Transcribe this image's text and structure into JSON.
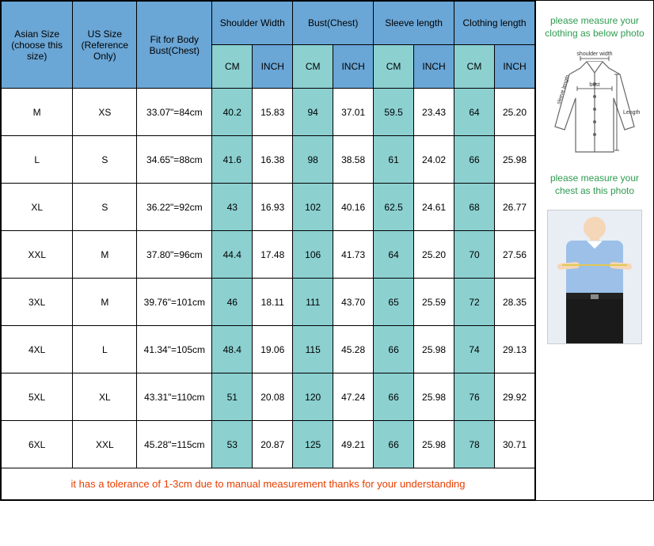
{
  "headers": {
    "asian_size": "Asian Size (choose this size)",
    "us_size": "US Size (Reference Only)",
    "fit_body": "Fit for Body Bust(Chest)",
    "shoulder": "Shoulder Width",
    "bust": "Bust(Chest)",
    "sleeve": "Sleeve length",
    "clothing": "Clothing length",
    "cm": "CM",
    "inch": "INCH"
  },
  "rows": [
    {
      "asian": "M",
      "us": "XS",
      "fit": "33.07\"=84cm",
      "sh_cm": "40.2",
      "sh_in": "15.83",
      "bu_cm": "94",
      "bu_in": "37.01",
      "sl_cm": "59.5",
      "sl_in": "23.43",
      "cl_cm": "64",
      "cl_in": "25.20"
    },
    {
      "asian": "L",
      "us": "S",
      "fit": "34.65\"=88cm",
      "sh_cm": "41.6",
      "sh_in": "16.38",
      "bu_cm": "98",
      "bu_in": "38.58",
      "sl_cm": "61",
      "sl_in": "24.02",
      "cl_cm": "66",
      "cl_in": "25.98"
    },
    {
      "asian": "XL",
      "us": "S",
      "fit": "36.22\"=92cm",
      "sh_cm": "43",
      "sh_in": "16.93",
      "bu_cm": "102",
      "bu_in": "40.16",
      "sl_cm": "62.5",
      "sl_in": "24.61",
      "cl_cm": "68",
      "cl_in": "26.77"
    },
    {
      "asian": "XXL",
      "us": "M",
      "fit": "37.80\"=96cm",
      "sh_cm": "44.4",
      "sh_in": "17.48",
      "bu_cm": "106",
      "bu_in": "41.73",
      "sl_cm": "64",
      "sl_in": "25.20",
      "cl_cm": "70",
      "cl_in": "27.56"
    },
    {
      "asian": "3XL",
      "us": "M",
      "fit": "39.76\"=101cm",
      "sh_cm": "46",
      "sh_in": "18.11",
      "bu_cm": "111",
      "bu_in": "43.70",
      "sl_cm": "65",
      "sl_in": "25.59",
      "cl_cm": "72",
      "cl_in": "28.35"
    },
    {
      "asian": "4XL",
      "us": "L",
      "fit": "41.34\"=105cm",
      "sh_cm": "48.4",
      "sh_in": "19.06",
      "bu_cm": "115",
      "bu_in": "45.28",
      "sl_cm": "66",
      "sl_in": "25.98",
      "cl_cm": "74",
      "cl_in": "29.13"
    },
    {
      "asian": "5XL",
      "us": "XL",
      "fit": "43.31\"=110cm",
      "sh_cm": "51",
      "sh_in": "20.08",
      "bu_cm": "120",
      "bu_in": "47.24",
      "sl_cm": "66",
      "sl_in": "25.98",
      "cl_cm": "76",
      "cl_in": "29.92"
    },
    {
      "asian": "6XL",
      "us": "XXL",
      "fit": "45.28\"=115cm",
      "sh_cm": "53",
      "sh_in": "20.87",
      "bu_cm": "125",
      "bu_in": "49.21",
      "sl_cm": "66",
      "sl_in": "25.98",
      "cl_cm": "78",
      "cl_in": "30.71"
    }
  ],
  "footer": "it has a tolerance of 1-3cm due to manual measurement thanks for your understanding",
  "side": {
    "text1": "please measure your clothing as below photo",
    "text2": "please measure your chest as this photo",
    "diagram_labels": {
      "shoulder": "shoulder width",
      "bust": "bust",
      "length": "Length",
      "sleeve": "sleeve length"
    }
  },
  "colors": {
    "header_blue": "#6aa6d6",
    "cell_teal": "#8cd0d0",
    "footer_text": "#e83e00",
    "side_text": "#2e9b4f"
  },
  "col_widths": {
    "asian": 78,
    "us": 70,
    "fit": 82,
    "meas_cm": 44,
    "meas_in": 44
  }
}
